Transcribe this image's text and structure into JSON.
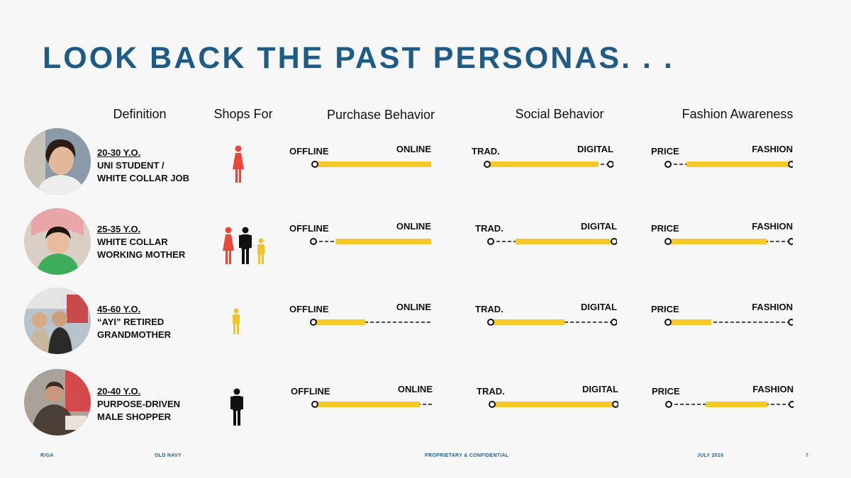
{
  "title": "LOOK BACK THE PAST PERSONAS. . .",
  "columns": {
    "definition": "Definition",
    "shops_for": "Shops For",
    "purchase": "Purchase Behavior",
    "social": "Social Behavior",
    "fashion": "Fashion Awareness"
  },
  "scale_labels": {
    "purchase": {
      "left": "OFFLINE",
      "right": "ONLINE"
    },
    "social": {
      "left": "TRAD.",
      "right": "DIGITAL"
    },
    "fashion": {
      "left": "PRICE",
      "right": "FASHION"
    }
  },
  "personas": [
    {
      "age": "20-30 Y.O.",
      "line1": "UNI STUDENT /",
      "line2": "WHITE COLLAR JOB",
      "shops_for": [
        "woman"
      ],
      "purchase": [
        0.02,
        1.0
      ],
      "social": [
        0.02,
        0.9
      ],
      "fashion": [
        0.15,
        1.0
      ]
    },
    {
      "age": "25-35 Y.O.",
      "line1": "WHITE COLLAR",
      "line2": "WORKING MOTHER",
      "shops_for": [
        "woman",
        "man",
        "child"
      ],
      "purchase": [
        0.18,
        1.0
      ],
      "social": [
        0.2,
        0.97
      ],
      "fashion": [
        0.02,
        0.8
      ]
    },
    {
      "age": "45-60 Y.O.",
      "line1": "“AYI” RETIRED",
      "line2": "GRANDMOTHER",
      "shops_for": [
        "child"
      ],
      "purchase": [
        0.02,
        0.42
      ],
      "social": [
        0.02,
        0.6
      ],
      "fashion": [
        0.02,
        0.35
      ]
    },
    {
      "age": "20-40 Y.O.",
      "line1": "PURPOSE-DRIVEN",
      "line2": "MALE SHOPPER",
      "shops_for": [
        "man"
      ],
      "purchase": [
        0.02,
        0.85
      ],
      "social": [
        0.02,
        1.0
      ],
      "fashion": [
        0.3,
        0.8
      ]
    }
  ],
  "footer": {
    "agency": "R/GA",
    "brand": "OLD NAVY",
    "confidential": "PROPRIETARY & CONFIDENTIAL",
    "date": "JULY 2016",
    "page": "7"
  },
  "colors": {
    "title": "#1e5b86",
    "bar": "#f6c928",
    "woman": "#e9473a",
    "man": "#111111",
    "child": "#f1c22b"
  }
}
